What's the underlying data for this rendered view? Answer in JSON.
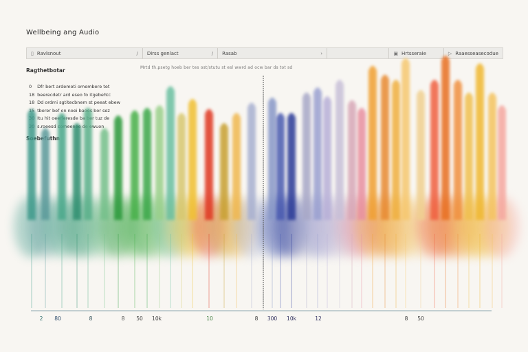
{
  "app": {
    "title": "Wellbeing ang Audio"
  },
  "toolbar": {
    "field1": {
      "icon": "document-icon",
      "label": "Ravlsnout"
    },
    "field2": {
      "icon": "chevron-icon",
      "label": "Dirss genlact"
    },
    "field3": {
      "icon": "chevron-icon",
      "label": "Rasab"
    },
    "field4": {
      "icon": "square-icon",
      "label": "Hrtsseraie"
    },
    "field5": {
      "icon": "play-icon",
      "label": "Raaesseasecodue"
    }
  },
  "caption": "Mrtd th.psetg hoeb ber tes ost/stutu st esl wwrd ad ocw bar ds tot sd",
  "sidebar": {
    "legend_heading": "Ragthetbotar",
    "legend_items": [
      {
        "num": "0",
        "text": "Dfr bert ardemoti omembere tet"
      },
      {
        "num": "18",
        "text": "beerecdetr ard eseo fo itgebehtc"
      },
      {
        "num": "18",
        "text": "Dd ordmi sgtitecbnem st peeat ebew"
      },
      {
        "num": "15",
        "text": "tberer bef on noei baoes bor sez"
      },
      {
        "num": "30",
        "text": "Itu hit oeerleresde ba ber tuz de"
      },
      {
        "num": "30",
        "text": "s.roeesd comeenee de ewuon"
      }
    ],
    "section_heading": "Soebefuthn"
  },
  "chart_data": {
    "type": "bar",
    "title": "",
    "xlabel": "",
    "ylabel": "",
    "tick_labels": [
      {
        "pos": 60,
        "label": "2"
      },
      {
        "pos": 84,
        "label": "80"
      },
      {
        "pos": 132,
        "label": "8"
      },
      {
        "pos": 179,
        "label": "8"
      },
      {
        "pos": 203,
        "label": "50"
      },
      {
        "pos": 228,
        "label": "10k"
      },
      {
        "pos": 305,
        "label": "10"
      },
      {
        "pos": 373,
        "label": "8"
      },
      {
        "pos": 396,
        "label": "300"
      },
      {
        "pos": 424,
        "label": "10k"
      },
      {
        "pos": 463,
        "label": "12"
      },
      {
        "pos": 591,
        "label": "8"
      },
      {
        "pos": 612,
        "label": "50"
      }
    ],
    "tick_colors": [
      "#2a6a6a",
      "#2a4a6a",
      "#2b4a55",
      "#4a4a4a",
      "#3a3a3a",
      "#3a3a3a",
      "#3a7a3a",
      "#3a3a3a",
      "#2a2a5a",
      "#2a2a5a",
      "#2a2a5a",
      "#3a3a3a",
      "#3a3a3a"
    ],
    "bars": [
      {
        "pos": 46,
        "value": 0.77,
        "color": "#3c9a8a"
      },
      {
        "pos": 66,
        "value": 0.62,
        "color": "#5a9a9a"
      },
      {
        "pos": 90,
        "value": 0.74,
        "color": "#4aa88a"
      },
      {
        "pos": 112,
        "value": 0.66,
        "color": "#2f8f6f"
      },
      {
        "pos": 128,
        "value": 0.78,
        "color": "#5ab08a"
      },
      {
        "pos": 152,
        "value": 0.62,
        "color": "#74c08a"
      },
      {
        "pos": 172,
        "value": 0.72,
        "color": "#2a9a3a"
      },
      {
        "pos": 196,
        "value": 0.76,
        "color": "#46b04a"
      },
      {
        "pos": 214,
        "value": 0.78,
        "color": "#3aa84a"
      },
      {
        "pos": 232,
        "value": 0.8,
        "color": "#9ad08a"
      },
      {
        "pos": 248,
        "value": 0.95,
        "color": "#6ac0a0"
      },
      {
        "pos": 264,
        "value": 0.74,
        "color": "#d8c870"
      },
      {
        "pos": 280,
        "value": 0.85,
        "color": "#f0c030"
      },
      {
        "pos": 304,
        "value": 0.77,
        "color": "#e03820"
      },
      {
        "pos": 326,
        "value": 0.66,
        "color": "#c8a030"
      },
      {
        "pos": 344,
        "value": 0.74,
        "color": "#f0b850"
      },
      {
        "pos": 366,
        "value": 0.82,
        "color": "#a8b0d0"
      },
      {
        "pos": 396,
        "value": 0.86,
        "color": "#8898c8"
      },
      {
        "pos": 408,
        "value": 0.74,
        "color": "#4a5ab0"
      },
      {
        "pos": 424,
        "value": 0.74,
        "color": "#2a3a98"
      },
      {
        "pos": 446,
        "value": 0.9,
        "color": "#a8a8c8"
      },
      {
        "pos": 462,
        "value": 0.94,
        "color": "#9aa0d0"
      },
      {
        "pos": 476,
        "value": 0.87,
        "color": "#b8b0d8"
      },
      {
        "pos": 494,
        "value": 1.0,
        "color": "#c8c0d8"
      },
      {
        "pos": 512,
        "value": 0.84,
        "color": "#d8a8b8"
      },
      {
        "pos": 526,
        "value": 0.78,
        "color": "#e890a0"
      },
      {
        "pos": 542,
        "value": 1.11,
        "color": "#f0a030"
      },
      {
        "pos": 560,
        "value": 1.04,
        "color": "#e88a30"
      },
      {
        "pos": 576,
        "value": 1.0,
        "color": "#f0b040"
      },
      {
        "pos": 590,
        "value": 1.17,
        "color": "#f6c870"
      },
      {
        "pos": 612,
        "value": 0.92,
        "color": "#f0d090"
      },
      {
        "pos": 632,
        "value": 1.0,
        "color": "#f06040"
      },
      {
        "pos": 648,
        "value": 1.19,
        "color": "#e87020"
      },
      {
        "pos": 666,
        "value": 1.0,
        "color": "#f09040"
      },
      {
        "pos": 682,
        "value": 0.9,
        "color": "#f0c050"
      },
      {
        "pos": 698,
        "value": 1.13,
        "color": "#f0b830"
      },
      {
        "pos": 716,
        "value": 0.9,
        "color": "#f4c460"
      },
      {
        "pos": 730,
        "value": 0.8,
        "color": "#f5a8a0"
      }
    ],
    "marker_pos": 383,
    "grid": false,
    "legend": "left"
  }
}
